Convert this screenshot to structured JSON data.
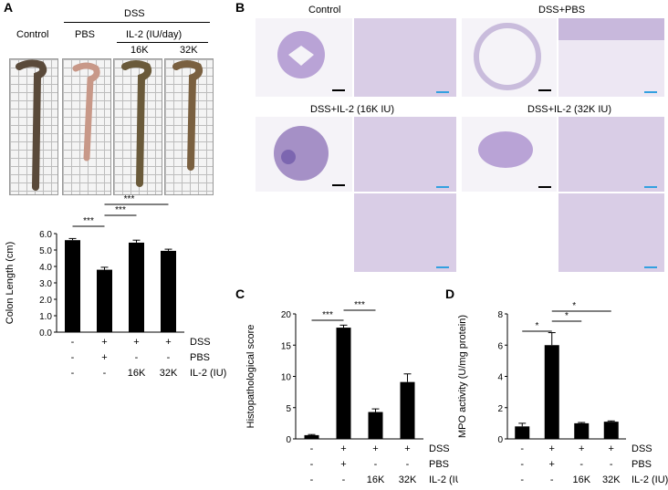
{
  "panels": {
    "A": "A",
    "B": "B",
    "C": "C",
    "D": "D"
  },
  "panelA": {
    "header_dss": "DSS",
    "col_control": "Control",
    "col_pbs": "PBS",
    "header_il2": "IL-2 (IU/day)",
    "col_16k": "16K",
    "col_32k": "32K"
  },
  "panelB": {
    "label_control": "Control",
    "label_dss_pbs": "DSS+PBS",
    "label_il2_16k": "DSS+IL-2 (16K IU)",
    "label_il2_32k": "DSS+IL-2 (32K IU)"
  },
  "treatment_table": {
    "rows": [
      {
        "name": "DSS",
        "values": [
          "-",
          "+",
          "+",
          "+"
        ]
      },
      {
        "name": "PBS",
        "values": [
          "-",
          "+",
          "-",
          "-"
        ]
      },
      {
        "name": "IL-2 (IU)",
        "values": [
          "-",
          "-",
          "16K",
          "32K"
        ]
      }
    ]
  },
  "colors": {
    "bar": "#000000",
    "scalebar_black": "#000000",
    "scalebar_blue": "#33a0e0",
    "tissue": "#a58cc8"
  },
  "chart_data": [
    {
      "id": "A",
      "type": "bar",
      "categories": [
        "Control",
        "DSS+PBS",
        "DSS+IL-2 16K",
        "DSS+IL-2 32K"
      ],
      "values": [
        5.6,
        3.8,
        5.45,
        4.95
      ],
      "errors": [
        0.1,
        0.15,
        0.15,
        0.1
      ],
      "ylabel": "Colon Length (cm)",
      "ylim": [
        0,
        6
      ],
      "yticks": [
        "0.0",
        "1.0",
        "2.0",
        "3.0",
        "4.0",
        "5.0",
        "6.0"
      ],
      "significance": [
        {
          "from": 0,
          "to": 1,
          "label": "***"
        },
        {
          "from": 1,
          "to": 2,
          "label": "***"
        },
        {
          "from": 1,
          "to": 3,
          "label": "***"
        }
      ]
    },
    {
      "id": "C",
      "type": "bar",
      "categories": [
        "Control",
        "DSS+PBS",
        "DSS+IL-2 16K",
        "DSS+IL-2 32K"
      ],
      "values": [
        0.6,
        17.8,
        4.3,
        9.1
      ],
      "errors": [
        0.1,
        0.4,
        0.5,
        1.3
      ],
      "ylabel": "Histopathological score",
      "ylim": [
        0,
        20
      ],
      "yticks": [
        "0",
        "5",
        "10",
        "15",
        "20"
      ],
      "significance": [
        {
          "from": 0,
          "to": 1,
          "label": "***"
        },
        {
          "from": 1,
          "to": 2,
          "label": "***"
        },
        {
          "from": 1,
          "to": 3,
          "label": "***"
        }
      ]
    },
    {
      "id": "D",
      "type": "bar",
      "categories": [
        "Control",
        "DSS+PBS",
        "DSS+IL-2 16K",
        "DSS+IL-2 32K"
      ],
      "values": [
        0.8,
        6.0,
        1.0,
        1.1
      ],
      "errors": [
        0.2,
        0.8,
        0.05,
        0.05
      ],
      "ylabel": "MPO activity (U/mg protein)",
      "ylim": [
        0,
        8
      ],
      "yticks": [
        "0",
        "2",
        "4",
        "6",
        "8"
      ],
      "significance": [
        {
          "from": 0,
          "to": 1,
          "label": "*"
        },
        {
          "from": 1,
          "to": 2,
          "label": "*"
        },
        {
          "from": 1,
          "to": 3,
          "label": "*"
        }
      ]
    }
  ]
}
